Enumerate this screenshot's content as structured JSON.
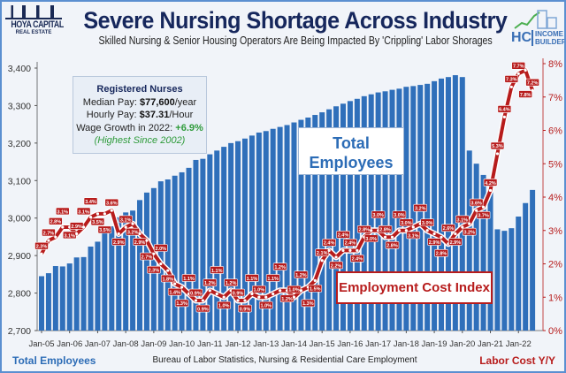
{
  "logo_left": {
    "name": "HOYA CAPITAL",
    "sub": "REAL ESTATE"
  },
  "logo_right": {
    "initials": "HC",
    "line1": "INCOME",
    "line2": "BUILDER"
  },
  "info_box": {
    "heading": "Registered Nurses",
    "median_label": "Median Pay: ",
    "median_value": "$77,600",
    "median_unit": "/year",
    "hourly_label": "Hourly Pay: ",
    "hourly_value": "$37.31",
    "hourly_unit": "/Hour",
    "growth_label": "Wage Growth in 2022: ",
    "growth_value": "+6.9%",
    "note": "(Highest Since 2002)"
  },
  "annotations": {
    "employees": [
      "Total",
      "Employees"
    ],
    "eci": "Employment Cost Index"
  },
  "footer": {
    "left": "Total Employees",
    "center": "Bureau of Labor Statistics, Nursing & Residential Care Employment",
    "right": "Labor Cost Y/Y"
  },
  "colors": {
    "bars": "#2f6fba",
    "line": "#b71c1c",
    "title": "#16275c"
  },
  "chart_data": {
    "type": "bar+line",
    "title": "Severe Nursing Shortage Across Industry",
    "subtitle": "Skilled Nursing & Senior Housing Operators Are Being Impacted By 'Crippling' Labor Shorages",
    "x_tick_labels": [
      "Jan-05",
      "Jan-06",
      "Jan-07",
      "Jan-08",
      "Jan-09",
      "Jan-10",
      "Jan-11",
      "Jan-12",
      "Jan-13",
      "Jan-14",
      "Jan-15",
      "Jan-16",
      "Jan-17",
      "Jan-18",
      "Jan-19",
      "Jan-20",
      "Jan-21",
      "Jan-22"
    ],
    "y_left": {
      "label": "Total Employees",
      "ylim": [
        2700,
        3400
      ],
      "ticks": [
        "2,700",
        "2,800",
        "2,900",
        "3,000",
        "3,100",
        "3,200",
        "3,300",
        "3,400"
      ]
    },
    "y_right": {
      "label": "Labor Cost Y/Y",
      "ylim": [
        0,
        8
      ],
      "ticks": [
        "0%",
        "1%",
        "2%",
        "3%",
        "4%",
        "5%",
        "6%",
        "7%",
        "8%"
      ]
    },
    "grid": false,
    "x": [
      "2005Q1",
      "2005Q2",
      "2005Q3",
      "2005Q4",
      "2006Q1",
      "2006Q2",
      "2006Q3",
      "2006Q4",
      "2007Q1",
      "2007Q2",
      "2007Q3",
      "2007Q4",
      "2008Q1",
      "2008Q2",
      "2008Q3",
      "2008Q4",
      "2009Q1",
      "2009Q2",
      "2009Q3",
      "2009Q4",
      "2010Q1",
      "2010Q2",
      "2010Q3",
      "2010Q4",
      "2011Q1",
      "2011Q2",
      "2011Q3",
      "2011Q4",
      "2012Q1",
      "2012Q2",
      "2012Q3",
      "2012Q4",
      "2013Q1",
      "2013Q2",
      "2013Q3",
      "2013Q4",
      "2014Q1",
      "2014Q2",
      "2014Q3",
      "2014Q4",
      "2015Q1",
      "2015Q2",
      "2015Q3",
      "2015Q4",
      "2016Q1",
      "2016Q2",
      "2016Q3",
      "2016Q4",
      "2017Q1",
      "2017Q2",
      "2017Q3",
      "2017Q4",
      "2018Q1",
      "2018Q2",
      "2018Q3",
      "2018Q4",
      "2019Q1",
      "2019Q2",
      "2019Q3",
      "2019Q4",
      "2020Q1",
      "2020Q2",
      "2020Q3",
      "2020Q4",
      "2021Q1",
      "2021Q2",
      "2021Q3",
      "2021Q4",
      "2022Q1",
      "2022Q2",
      "2022Q3"
    ],
    "series": [
      {
        "name": "Total Employees",
        "type": "bar",
        "axis": "left",
        "values": [
          2845,
          2853,
          2872,
          2871,
          2879,
          2895,
          2896,
          2924,
          2937,
          2965,
          2978,
          3002,
          3015,
          3020,
          3048,
          3068,
          3080,
          3098,
          3103,
          3113,
          3122,
          3134,
          3155,
          3158,
          3170,
          3180,
          3190,
          3200,
          3205,
          3212,
          3220,
          3228,
          3232,
          3238,
          3243,
          3248,
          3255,
          3262,
          3268,
          3275,
          3282,
          3290,
          3298,
          3305,
          3312,
          3318,
          3325,
          3330,
          3335,
          3338,
          3342,
          3345,
          3350,
          3352,
          3355,
          3358,
          3365,
          3372,
          3376,
          3381,
          3376,
          3180,
          3145,
          3115,
          3077,
          2970,
          2966,
          2973,
          3004,
          3040,
          3075
        ]
      },
      {
        "name": "Employment Cost Index",
        "type": "line",
        "axis": "right",
        "values": [
          2.3,
          2.7,
          2.8,
          3.1,
          3.1,
          2.9,
          3.1,
          3.4,
          3.5,
          3.5,
          3.6,
          2.9,
          3.1,
          3.2,
          2.9,
          2.7,
          2.3,
          2.0,
          1.8,
          1.4,
          1.3,
          1.1,
          0.9,
          0.9,
          1.2,
          1.1,
          1.0,
          1.2,
          0.9,
          0.9,
          1.1,
          1.0,
          1.0,
          1.1,
          1.2,
          1.2,
          1.0,
          1.2,
          1.3,
          1.5,
          2.1,
          2.4,
          2.2,
          2.4,
          2.4,
          2.4,
          2.8,
          3.0,
          3.0,
          2.8,
          2.8,
          3.0,
          3.0,
          3.1,
          3.2,
          3.0,
          2.9,
          2.8,
          2.6,
          2.9,
          3.1,
          3.2,
          3.6,
          3.7,
          4.2,
          5.3,
          6.4,
          7.3,
          7.7,
          7.8,
          7.2
        ]
      }
    ]
  }
}
